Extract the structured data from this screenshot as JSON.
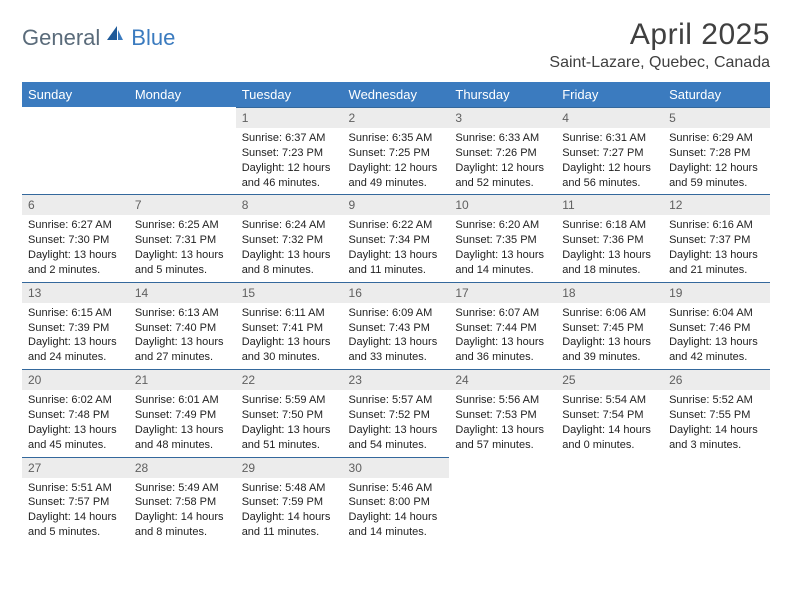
{
  "brand": {
    "part1": "General",
    "part2": "Blue"
  },
  "title": "April 2025",
  "location": "Saint-Lazare, Quebec, Canada",
  "colors": {
    "header_bg": "#3b7bbf",
    "header_text": "#ffffff",
    "daynum_bg": "#ececec",
    "daynum_text": "#606060",
    "day_border_top": "#34689c",
    "body_text": "#222222",
    "page_bg": "#ffffff",
    "brand_gray": "#5a6b7a",
    "brand_blue": "#3b7bbf"
  },
  "dayHeaders": [
    "Sunday",
    "Monday",
    "Tuesday",
    "Wednesday",
    "Thursday",
    "Friday",
    "Saturday"
  ],
  "weeks": [
    [
      null,
      null,
      {
        "n": "1",
        "sr": "6:37 AM",
        "ss": "7:23 PM",
        "dl": "12 hours and 46 minutes."
      },
      {
        "n": "2",
        "sr": "6:35 AM",
        "ss": "7:25 PM",
        "dl": "12 hours and 49 minutes."
      },
      {
        "n": "3",
        "sr": "6:33 AM",
        "ss": "7:26 PM",
        "dl": "12 hours and 52 minutes."
      },
      {
        "n": "4",
        "sr": "6:31 AM",
        "ss": "7:27 PM",
        "dl": "12 hours and 56 minutes."
      },
      {
        "n": "5",
        "sr": "6:29 AM",
        "ss": "7:28 PM",
        "dl": "12 hours and 59 minutes."
      }
    ],
    [
      {
        "n": "6",
        "sr": "6:27 AM",
        "ss": "7:30 PM",
        "dl": "13 hours and 2 minutes."
      },
      {
        "n": "7",
        "sr": "6:25 AM",
        "ss": "7:31 PM",
        "dl": "13 hours and 5 minutes."
      },
      {
        "n": "8",
        "sr": "6:24 AM",
        "ss": "7:32 PM",
        "dl": "13 hours and 8 minutes."
      },
      {
        "n": "9",
        "sr": "6:22 AM",
        "ss": "7:34 PM",
        "dl": "13 hours and 11 minutes."
      },
      {
        "n": "10",
        "sr": "6:20 AM",
        "ss": "7:35 PM",
        "dl": "13 hours and 14 minutes."
      },
      {
        "n": "11",
        "sr": "6:18 AM",
        "ss": "7:36 PM",
        "dl": "13 hours and 18 minutes."
      },
      {
        "n": "12",
        "sr": "6:16 AM",
        "ss": "7:37 PM",
        "dl": "13 hours and 21 minutes."
      }
    ],
    [
      {
        "n": "13",
        "sr": "6:15 AM",
        "ss": "7:39 PM",
        "dl": "13 hours and 24 minutes."
      },
      {
        "n": "14",
        "sr": "6:13 AM",
        "ss": "7:40 PM",
        "dl": "13 hours and 27 minutes."
      },
      {
        "n": "15",
        "sr": "6:11 AM",
        "ss": "7:41 PM",
        "dl": "13 hours and 30 minutes."
      },
      {
        "n": "16",
        "sr": "6:09 AM",
        "ss": "7:43 PM",
        "dl": "13 hours and 33 minutes."
      },
      {
        "n": "17",
        "sr": "6:07 AM",
        "ss": "7:44 PM",
        "dl": "13 hours and 36 minutes."
      },
      {
        "n": "18",
        "sr": "6:06 AM",
        "ss": "7:45 PM",
        "dl": "13 hours and 39 minutes."
      },
      {
        "n": "19",
        "sr": "6:04 AM",
        "ss": "7:46 PM",
        "dl": "13 hours and 42 minutes."
      }
    ],
    [
      {
        "n": "20",
        "sr": "6:02 AM",
        "ss": "7:48 PM",
        "dl": "13 hours and 45 minutes."
      },
      {
        "n": "21",
        "sr": "6:01 AM",
        "ss": "7:49 PM",
        "dl": "13 hours and 48 minutes."
      },
      {
        "n": "22",
        "sr": "5:59 AM",
        "ss": "7:50 PM",
        "dl": "13 hours and 51 minutes."
      },
      {
        "n": "23",
        "sr": "5:57 AM",
        "ss": "7:52 PM",
        "dl": "13 hours and 54 minutes."
      },
      {
        "n": "24",
        "sr": "5:56 AM",
        "ss": "7:53 PM",
        "dl": "13 hours and 57 minutes."
      },
      {
        "n": "25",
        "sr": "5:54 AM",
        "ss": "7:54 PM",
        "dl": "14 hours and 0 minutes."
      },
      {
        "n": "26",
        "sr": "5:52 AM",
        "ss": "7:55 PM",
        "dl": "14 hours and 3 minutes."
      }
    ],
    [
      {
        "n": "27",
        "sr": "5:51 AM",
        "ss": "7:57 PM",
        "dl": "14 hours and 5 minutes."
      },
      {
        "n": "28",
        "sr": "5:49 AM",
        "ss": "7:58 PM",
        "dl": "14 hours and 8 minutes."
      },
      {
        "n": "29",
        "sr": "5:48 AM",
        "ss": "7:59 PM",
        "dl": "14 hours and 11 minutes."
      },
      {
        "n": "30",
        "sr": "5:46 AM",
        "ss": "8:00 PM",
        "dl": "14 hours and 14 minutes."
      },
      null,
      null,
      null
    ]
  ],
  "labels": {
    "sunrise": "Sunrise:",
    "sunset": "Sunset:",
    "daylight": "Daylight:"
  }
}
